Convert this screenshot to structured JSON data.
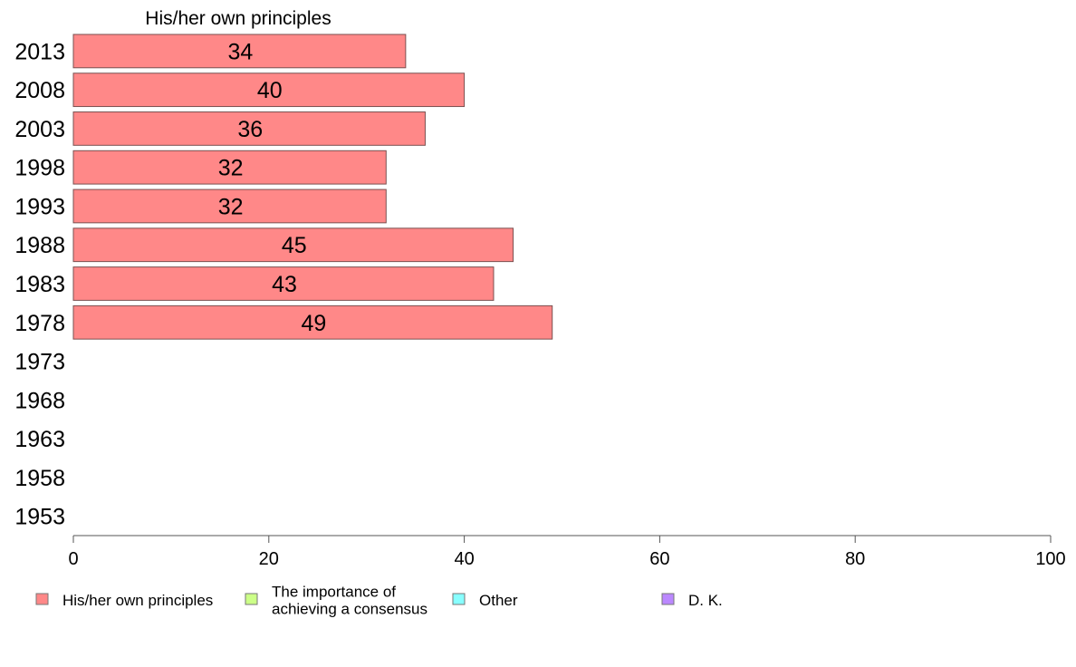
{
  "chart_data": {
    "type": "bar",
    "orientation": "horizontal",
    "title": "His/her own principles",
    "categories": [
      "2013",
      "2008",
      "2003",
      "1998",
      "1993",
      "1988",
      "1983",
      "1978",
      "1973",
      "1968",
      "1963",
      "1958",
      "1953"
    ],
    "series": [
      {
        "name": "His/her own principles",
        "color": "#ff8888",
        "values": [
          34,
          40,
          36,
          32,
          32,
          45,
          43,
          49,
          null,
          null,
          null,
          null,
          null
        ]
      }
    ],
    "xlim": [
      0,
      100
    ],
    "xticks": [
      0,
      20,
      40,
      60,
      80,
      100
    ],
    "grid": false,
    "legend_position": "bottom",
    "legend": [
      {
        "label": "His/her own principles",
        "color": "#ff8888"
      },
      {
        "label": "The importance of\nachieving a consensus",
        "color": "#ccff88"
      },
      {
        "label": "Other",
        "color": "#88ffff"
      },
      {
        "label": "D. K.",
        "color": "#bb88ff"
      }
    ]
  }
}
